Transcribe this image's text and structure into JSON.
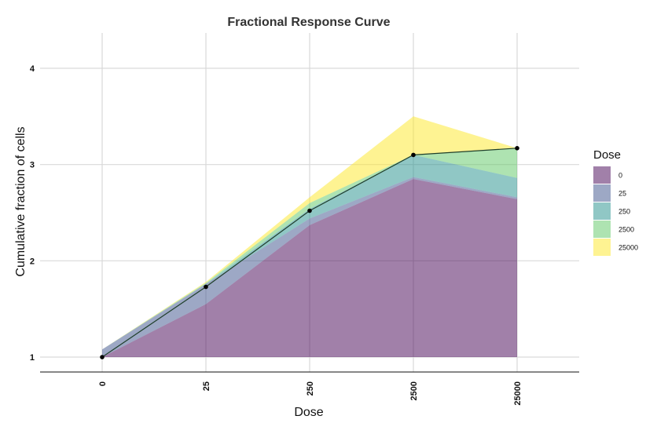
{
  "chart_data": {
    "type": "area",
    "title": "Fractional Response Curve",
    "xlabel": "Dose",
    "ylabel": "Cumulative fraction of cells",
    "categories": [
      "0",
      "25",
      "250",
      "2500",
      "25000"
    ],
    "yticks": [
      1,
      2,
      3,
      4
    ],
    "ylim": [
      0.85,
      4.35
    ],
    "grid": true,
    "legend": {
      "title": "Dose",
      "position": "right"
    },
    "series": [
      {
        "name": "0",
        "color": "#440154",
        "lower": [
          1.0,
          1.0,
          1.0,
          1.0,
          1.0
        ],
        "upper": [
          1.0,
          1.55,
          2.37,
          2.85,
          2.64
        ]
      },
      {
        "name": "25",
        "color": "#3B528B",
        "lower": [
          1.0,
          1.55,
          2.37,
          2.85,
          2.64
        ],
        "upper": [
          1.08,
          1.76,
          2.44,
          2.87,
          2.66
        ]
      },
      {
        "name": "250",
        "color": "#21908C",
        "lower": [
          1.08,
          1.76,
          2.44,
          2.87,
          2.66
        ],
        "upper": [
          1.08,
          1.76,
          2.54,
          3.1,
          2.86
        ]
      },
      {
        "name": "2500",
        "color": "#5DC863",
        "lower": [
          1.08,
          1.76,
          2.54,
          3.1,
          2.86
        ],
        "upper": [
          1.08,
          1.77,
          2.6,
          3.1,
          3.17
        ]
      },
      {
        "name": "25000",
        "color": "#FDE725",
        "lower": [
          1.08,
          1.77,
          2.6,
          3.1,
          3.17
        ],
        "upper": [
          1.08,
          1.78,
          2.66,
          3.5,
          3.17
        ]
      }
    ],
    "mean_line": {
      "values": [
        1.0,
        1.73,
        2.52,
        3.1,
        3.17
      ],
      "color": "#1f3f2a"
    }
  }
}
